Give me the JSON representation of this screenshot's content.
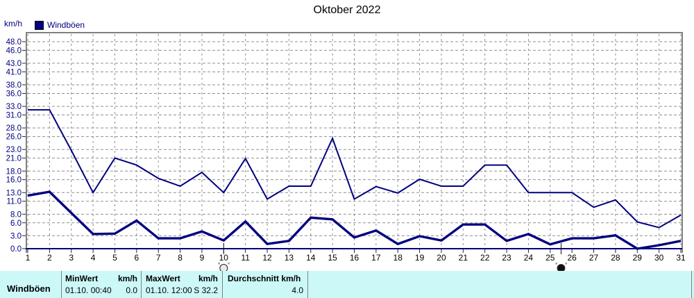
{
  "title": "Oktober 2022",
  "axis": {
    "unit_label": "km/h"
  },
  "legend": {
    "label": "Windböen"
  },
  "colors": {
    "line": "#000080",
    "grid": "#8f8f8f",
    "frame": "#808080",
    "axis_text": "#000080",
    "day_text": "#000000",
    "table_bg": "#cdf8f8",
    "table_separator": "#808080"
  },
  "chart_data": {
    "type": "line",
    "title": "Oktober 2022",
    "ylabel": "km/h",
    "x": [
      1,
      2,
      3,
      4,
      5,
      6,
      7,
      8,
      9,
      10,
      11,
      12,
      13,
      14,
      15,
      16,
      17,
      18,
      19,
      20,
      21,
      22,
      23,
      24,
      25,
      26,
      27,
      28,
      29,
      30,
      31
    ],
    "y_ticks": [
      0,
      3,
      6,
      8,
      11,
      13,
      16,
      18,
      21,
      23,
      26,
      28,
      31,
      33,
      36,
      38,
      41,
      43,
      46,
      48
    ],
    "ylim": [
      0,
      50.2
    ],
    "grid": true,
    "legend_entries": [
      "Windböen"
    ],
    "series": [
      {
        "id": "windboeen-daily-max",
        "values": [
          32.2,
          32.2,
          22.8,
          13.0,
          21.0,
          19.4,
          16.3,
          14.5,
          17.7,
          13.0,
          20.9,
          11.5,
          14.5,
          14.5,
          25.6,
          11.5,
          14.4,
          12.9,
          16.1,
          14.5,
          14.5,
          19.4,
          19.4,
          13.0,
          13.0,
          13.0,
          9.6,
          11.3,
          6.2,
          4.9,
          7.8
        ]
      },
      {
        "id": "windboeen-daily-lower",
        "values": [
          12.3,
          13.2,
          8.3,
          3.4,
          3.5,
          6.5,
          2.4,
          2.4,
          4.0,
          1.9,
          6.3,
          1.1,
          1.8,
          7.2,
          6.8,
          2.6,
          4.2,
          1.1,
          2.9,
          1.9,
          5.6,
          5.6,
          1.8,
          3.4,
          1.0,
          2.4,
          2.4,
          3.1,
          0.0,
          0.8,
          1.8
        ]
      }
    ],
    "moon_markers": [
      {
        "x": 10,
        "phase": "full"
      },
      {
        "x": 25.5,
        "phase": "new"
      }
    ]
  },
  "summary_table": {
    "row_label": "Windböen",
    "min": {
      "header": "MinWert",
      "unit": "km/h",
      "datetime": "01.10. 00:40",
      "value": "0.0"
    },
    "max": {
      "header": "MaxWert",
      "unit": "km/h",
      "datetime": "01.10. 12:00",
      "value": "S 32.2"
    },
    "avg": {
      "header": "Durchschnitt km/h",
      "value": "4.0"
    }
  }
}
